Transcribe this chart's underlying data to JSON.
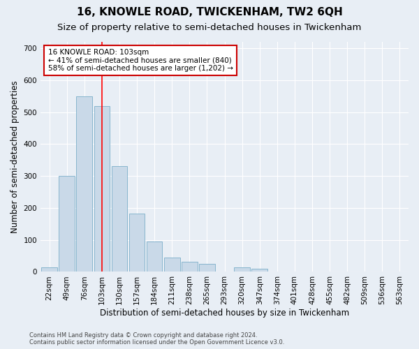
{
  "title": "16, KNOWLE ROAD, TWICKENHAM, TW2 6QH",
  "subtitle": "Size of property relative to semi-detached houses in Twickenham",
  "xlabel": "Distribution of semi-detached houses by size in Twickenham",
  "ylabel": "Number of semi-detached properties",
  "footnote": "Contains HM Land Registry data © Crown copyright and database right 2024.\nContains public sector information licensed under the Open Government Licence v3.0.",
  "categories": [
    "22sqm",
    "49sqm",
    "76sqm",
    "103sqm",
    "130sqm",
    "157sqm",
    "184sqm",
    "211sqm",
    "238sqm",
    "265sqm",
    "293sqm",
    "320sqm",
    "347sqm",
    "374sqm",
    "401sqm",
    "428sqm",
    "455sqm",
    "482sqm",
    "509sqm",
    "536sqm",
    "563sqm"
  ],
  "values": [
    15,
    300,
    550,
    520,
    330,
    183,
    95,
    45,
    32,
    26,
    0,
    15,
    10,
    0,
    0,
    0,
    0,
    0,
    0,
    0,
    0
  ],
  "bar_color": "#c9d9e8",
  "bar_edgecolor": "#7aaec8",
  "red_line_index": 3,
  "annotation_text": "16 KNOWLE ROAD: 103sqm\n← 41% of semi-detached houses are smaller (840)\n58% of semi-detached houses are larger (1,202) →",
  "annotation_box_facecolor": "#ffffff",
  "annotation_box_edgecolor": "#cc0000",
  "ylim": [
    0,
    720
  ],
  "yticks": [
    0,
    100,
    200,
    300,
    400,
    500,
    600,
    700
  ],
  "bg_color": "#e8eef5",
  "plot_bg_color": "#e8eef5",
  "grid_color": "#ffffff",
  "title_fontsize": 11,
  "subtitle_fontsize": 9.5,
  "axis_label_fontsize": 8.5,
  "tick_fontsize": 7.5,
  "annotation_fontsize": 7.5
}
